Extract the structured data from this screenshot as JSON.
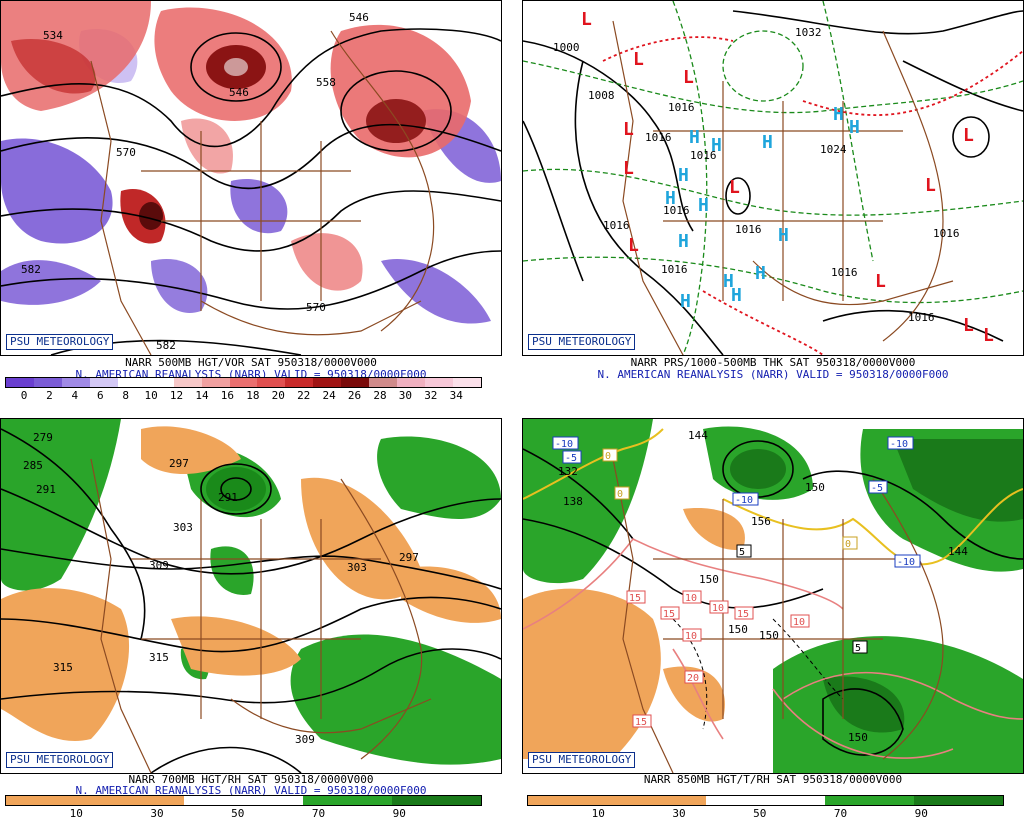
{
  "panels": [
    {
      "id": "p1",
      "label": "PSU METEOROLOGY",
      "caption_line1": "NARR 500MB HGT/VOR SAT 950318/0000V000",
      "caption_line2": "N. AMERICAN REANALYSIS (NARR) VALID = 950318/0000F000",
      "colorbar_ticks": [
        "0",
        "2",
        "4",
        "6",
        "8",
        "10",
        "12",
        "14",
        "16",
        "18",
        "20",
        "22",
        "24",
        "26",
        "28",
        "30",
        "32",
        "34"
      ],
      "contour_labels": [
        "534",
        "546",
        "558",
        "570",
        "570",
        "582",
        "582",
        "546"
      ]
    },
    {
      "id": "p2",
      "label": "PSU METEOROLOGY",
      "caption_line1": "NARR PRS/1000-500MB THK SAT 950318/0000V000",
      "caption_line2": "N. AMERICAN REANALYSIS (NARR) VALID = 950318/0000F000",
      "contour_labels": [
        "1000",
        "1032",
        "1008",
        "1016",
        "1016",
        "1016",
        "1024",
        "1016",
        "1016",
        "1016",
        "1016",
        "1016",
        "1016",
        "1016"
      ]
    },
    {
      "id": "p3",
      "label": "PSU METEOROLOGY",
      "caption_line1": "NARR 700MB HGT/RH SAT 950318/0000V000",
      "caption_line2": "N. AMERICAN REANALYSIS (NARR) VALID = 950318/0000F000",
      "colorbar_ticks": [
        "10",
        "30",
        "50",
        "70",
        "90"
      ],
      "contour_labels": [
        "279",
        "285",
        "291",
        "297",
        "291",
        "303",
        "309",
        "303",
        "297",
        "315",
        "315",
        "309"
      ]
    },
    {
      "id": "p4",
      "label": "PSU METEOROLOGY",
      "caption_line1": "NARR 850MB HGT/T/RH SAT 950318/0000V000",
      "caption_line2": "N. AMERICAN REANALYSIS (NARR) VALID = 950318/0000F000",
      "colorbar_ticks": [
        "10",
        "30",
        "50",
        "70",
        "90"
      ],
      "contour_labels": [
        "144",
        "150",
        "150",
        "150",
        "150",
        "144",
        "138",
        "132",
        "156",
        "150"
      ],
      "temp_boxes": [
        "-10",
        "-5",
        "0",
        "0",
        "-10",
        "-10",
        "-5",
        "-10",
        "5",
        "0",
        "15",
        "15",
        "10",
        "15",
        "10",
        "10",
        "10",
        "20",
        "15",
        "5"
      ]
    }
  ],
  "pressure_centers": {
    "highs": [
      "H",
      "H",
      "H",
      "H",
      "H",
      "H",
      "H",
      "H",
      "H",
      "H",
      "H",
      "H",
      "H",
      "H"
    ],
    "lows": [
      "L",
      "L",
      "L",
      "L",
      "L",
      "L",
      "L",
      "L",
      "L",
      "L",
      "L",
      "L"
    ]
  },
  "colors": {
    "border_brown": "#8b4a22",
    "label_blue": "#0b2f8c",
    "caption_blue": "#1520b0",
    "high_blue": "#1fa5dc",
    "low_red": "#e0141e",
    "rh_green": "#2aa52a",
    "rh_orange": "#f0a55a",
    "vor_purple": "#7b5cd6"
  }
}
